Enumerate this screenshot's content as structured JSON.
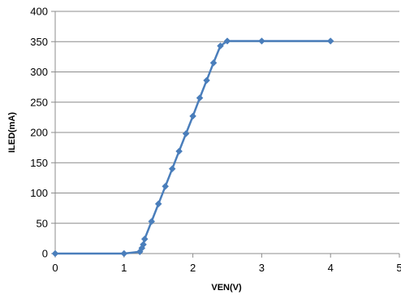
{
  "chart_data": {
    "type": "line",
    "title": "",
    "xlabel": "VEN(V)",
    "ylabel": "ILED(mA)",
    "xlim": [
      0,
      5
    ],
    "ylim": [
      0,
      400
    ],
    "xticks": [
      0,
      1,
      2,
      3,
      4,
      5
    ],
    "yticks": [
      0,
      50,
      100,
      150,
      200,
      250,
      300,
      350,
      400
    ],
    "grid": "horizontal",
    "legend": "none",
    "series": [
      {
        "color": "#4A7EBB",
        "marker": "diamond",
        "x": [
          0,
          1,
          1.23,
          1.26,
          1.28,
          1.3,
          1.4,
          1.5,
          1.6,
          1.7,
          1.8,
          1.9,
          2.0,
          2.1,
          2.2,
          2.3,
          2.4,
          2.5,
          3.0,
          4.0
        ],
        "y": [
          0,
          0,
          3,
          9,
          15,
          24,
          53,
          82,
          111,
          140,
          169,
          198,
          227,
          257,
          286,
          315,
          343,
          351,
          351,
          351
        ]
      }
    ]
  }
}
